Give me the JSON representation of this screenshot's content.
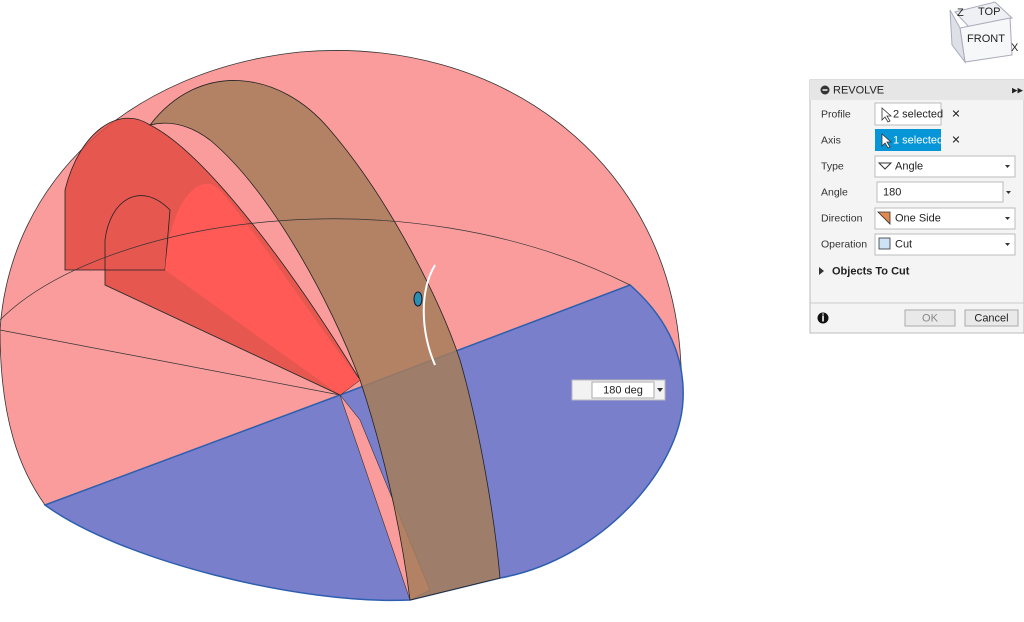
{
  "viewcube": {
    "top": "TOP",
    "front": "FRONT",
    "z": "Z",
    "x": "X"
  },
  "dialog": {
    "title": "REVOLVE",
    "rows": [
      {
        "label": "Profile",
        "value": "2 selected"
      },
      {
        "label": "Axis",
        "value": "1 selected"
      },
      {
        "label": "Type",
        "value": "Angle"
      },
      {
        "label": "Angle",
        "value": "180"
      },
      {
        "label": "Direction",
        "value": "One Side"
      },
      {
        "label": "Operation",
        "value": "Cut"
      }
    ],
    "section": "Objects To Cut",
    "buttons": [
      "OK",
      "Cancel"
    ]
  },
  "viewport": {
    "angle_input": "180 deg"
  }
}
